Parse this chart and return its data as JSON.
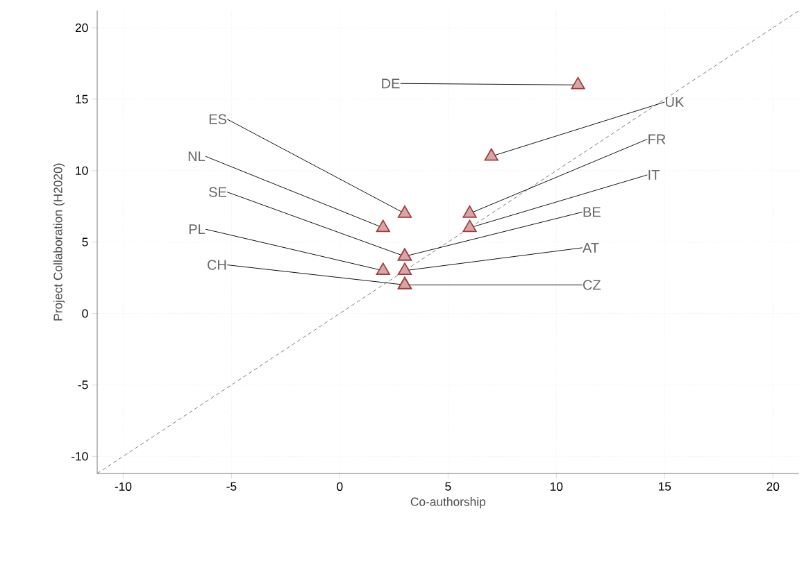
{
  "chart_data": {
    "type": "scatter",
    "xlabel": "Co-authorship",
    "ylabel": "Project Collaboration (H2020)",
    "xlim": [
      -11.2,
      21.2
    ],
    "ylim": [
      -11.2,
      21.2
    ],
    "xticks": [
      -10,
      -5,
      0,
      5,
      10,
      15,
      20
    ],
    "yticks": [
      -10,
      -5,
      0,
      5,
      10,
      15,
      20
    ],
    "grid": true,
    "marker": "triangle",
    "series": [
      {
        "color": "#a33a3a",
        "x": [
          11,
          7,
          3,
          6,
          2,
          6,
          3,
          3,
          2,
          3,
          3,
          3
        ],
        "values": [
          16,
          11,
          7,
          7,
          6,
          6,
          4,
          4,
          3,
          3,
          2,
          2
        ]
      },
      {
        "type": "line",
        "color": "#555555",
        "line_style": "dashed",
        "marker": "none",
        "x": [
          -11.2,
          21.2
        ],
        "values": [
          -11.2,
          21.2
        ]
      }
    ],
    "annotations": [
      {
        "text": "DE",
        "x": 11,
        "y": 16
      },
      {
        "text": "UK",
        "x": 7,
        "y": 11
      },
      {
        "text": "ES",
        "x": 3,
        "y": 7
      },
      {
        "text": "FR",
        "x": 6,
        "y": 7
      },
      {
        "text": "NL",
        "x": 2,
        "y": 6
      },
      {
        "text": "IT",
        "x": 6,
        "y": 6
      },
      {
        "text": "SE",
        "x": 3,
        "y": 4
      },
      {
        "text": "BE",
        "x": 3,
        "y": 4
      },
      {
        "text": "PL",
        "x": 2,
        "y": 3
      },
      {
        "text": "AT",
        "x": 3,
        "y": 3
      },
      {
        "text": "CH",
        "x": 3,
        "y": 2
      },
      {
        "text": "CZ",
        "x": 3,
        "y": 2
      }
    ]
  }
}
